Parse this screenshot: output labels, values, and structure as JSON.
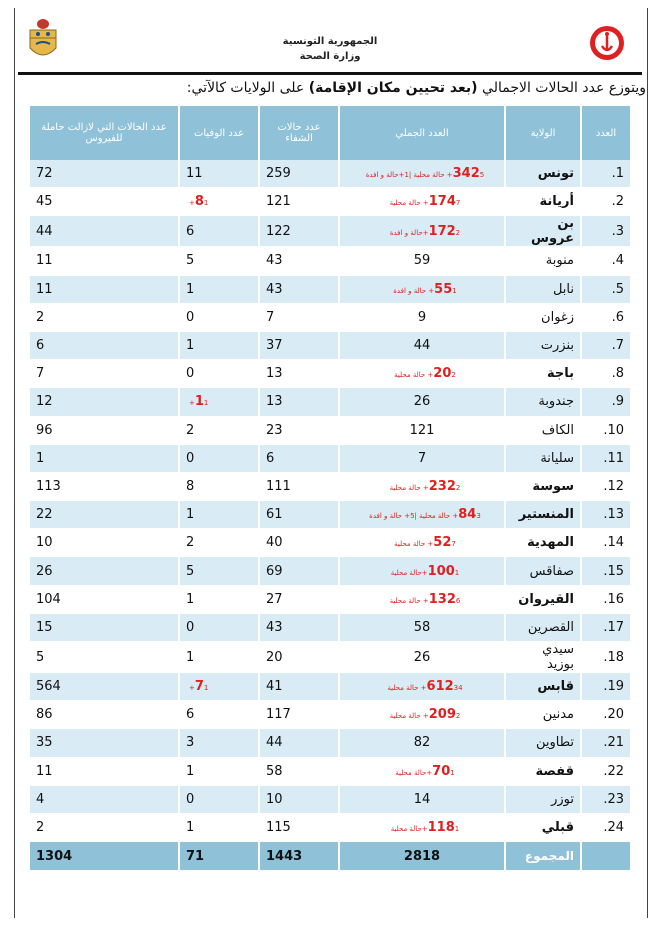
{
  "header": {
    "republic": "الجمهورية التونسية",
    "ministry": "وزارة الصحة"
  },
  "intro": {
    "prefix": "ويتوزع عدد الحالات الاجمالي ",
    "emphasis": "(بعد تحيين مكان الإقامة)",
    "suffix": " على الولايات كالآتي:"
  },
  "table": {
    "columns": [
      "العدد",
      "الولاية",
      "العدد الجملي",
      "عدد حالات الشفاء",
      "عدد الوفيات",
      "عدد الحالات التي لازالت حاملة للفيروس"
    ],
    "rows": [
      {
        "idx": "1.",
        "gov": "تونس",
        "bold": true,
        "total": "342",
        "total_red": true,
        "note": "5+ حالة محلية |1+حالة و افدة",
        "recovered": "259",
        "deaths": "11",
        "death_note": "",
        "active": "72"
      },
      {
        "idx": "2.",
        "gov": "أريانة",
        "bold": true,
        "total": "174",
        "total_red": true,
        "note": "7+ حالة محلية",
        "recovered": "121",
        "deaths": "8",
        "death_note": "1+",
        "active": "45"
      },
      {
        "idx": "3.",
        "gov": "بن عروس",
        "bold": true,
        "total": "172",
        "total_red": true,
        "note": "2+حالة و افدة",
        "recovered": "122",
        "deaths": "6",
        "death_note": "",
        "active": "44"
      },
      {
        "idx": "4.",
        "gov": "منوبة",
        "bold": false,
        "total": "59",
        "total_red": false,
        "note": "",
        "recovered": "43",
        "deaths": "5",
        "death_note": "",
        "active": "11"
      },
      {
        "idx": "5.",
        "gov": "نابل",
        "bold": false,
        "total": "55",
        "total_red": true,
        "note": "1+ حالة و افدة",
        "recovered": "43",
        "deaths": "1",
        "death_note": "",
        "active": "11"
      },
      {
        "idx": "6.",
        "gov": "زغوان",
        "bold": false,
        "total": "9",
        "total_red": false,
        "note": "",
        "recovered": "7",
        "deaths": "0",
        "death_note": "",
        "active": "2"
      },
      {
        "idx": "7.",
        "gov": "بنزرت",
        "bold": false,
        "total": "44",
        "total_red": false,
        "note": "",
        "recovered": "37",
        "deaths": "1",
        "death_note": "",
        "active": "6"
      },
      {
        "idx": "8.",
        "gov": "باجة",
        "bold": true,
        "total": "20",
        "total_red": true,
        "note": "2+ حالة محلية",
        "recovered": "13",
        "deaths": "0",
        "death_note": "",
        "active": "7"
      },
      {
        "idx": "9.",
        "gov": "جندوبة",
        "bold": false,
        "total": "26",
        "total_red": false,
        "note": "",
        "recovered": "13",
        "deaths": "1",
        "death_note": "1+",
        "active": "12"
      },
      {
        "idx": "10.",
        "gov": "الكاف",
        "bold": false,
        "total": "121",
        "total_red": false,
        "note": "",
        "recovered": "23",
        "deaths": "2",
        "death_note": "",
        "active": "96"
      },
      {
        "idx": "11.",
        "gov": "سليانة",
        "bold": false,
        "total": "7",
        "total_red": false,
        "note": "",
        "recovered": "6",
        "deaths": "0",
        "death_note": "",
        "active": "1"
      },
      {
        "idx": "12.",
        "gov": "سوسة",
        "bold": true,
        "total": "232",
        "total_red": true,
        "note": "2+ حالة محلية",
        "recovered": "111",
        "deaths": "8",
        "death_note": "",
        "active": "113"
      },
      {
        "idx": "13.",
        "gov": "المنستير",
        "bold": true,
        "total": "84",
        "total_red": true,
        "note": "3+ حالة محلية |5+ حالة و افدة",
        "recovered": "61",
        "deaths": "1",
        "death_note": "",
        "active": "22"
      },
      {
        "idx": "14.",
        "gov": "المهدية",
        "bold": true,
        "total": "52",
        "total_red": true,
        "note": "7+ حالة محلية",
        "recovered": "40",
        "deaths": "2",
        "death_note": "",
        "active": "10"
      },
      {
        "idx": "15.",
        "gov": "صفاقس",
        "bold": false,
        "total": "100",
        "total_red": true,
        "note": "1+حالة محلية",
        "recovered": "69",
        "deaths": "5",
        "death_note": "",
        "active": "26"
      },
      {
        "idx": "16.",
        "gov": "القيروان",
        "bold": true,
        "total": "132",
        "total_red": true,
        "note": "6+ حالة محلية",
        "recovered": "27",
        "deaths": "1",
        "death_note": "",
        "active": "104"
      },
      {
        "idx": "17.",
        "gov": "القصرين",
        "bold": false,
        "total": "58",
        "total_red": false,
        "note": "",
        "recovered": "43",
        "deaths": "0",
        "death_note": "",
        "active": "15"
      },
      {
        "idx": "18.",
        "gov": "سيدي بوزيد",
        "bold": false,
        "total": "26",
        "total_red": false,
        "note": "",
        "recovered": "20",
        "deaths": "1",
        "death_note": "",
        "active": "5"
      },
      {
        "idx": "19.",
        "gov": "قابس",
        "bold": true,
        "total": "612",
        "total_red": true,
        "note": "34+ حالة محلية",
        "recovered": "41",
        "deaths": "7",
        "death_note": "1+",
        "active": "564"
      },
      {
        "idx": "20.",
        "gov": "مدنين",
        "bold": false,
        "total": "209",
        "total_red": true,
        "note": "2+ حالة محلية",
        "recovered": "117",
        "deaths": "6",
        "death_note": "",
        "active": "86"
      },
      {
        "idx": "21.",
        "gov": "تطاوين",
        "bold": false,
        "total": "82",
        "total_red": false,
        "note": "",
        "recovered": "44",
        "deaths": "3",
        "death_note": "",
        "active": "35"
      },
      {
        "idx": "22.",
        "gov": "قفصة",
        "bold": true,
        "total": "70",
        "total_red": true,
        "note": "1+حالة محلية",
        "recovered": "58",
        "deaths": "1",
        "death_note": "",
        "active": "11"
      },
      {
        "idx": "23.",
        "gov": "توزر",
        "bold": false,
        "total": "14",
        "total_red": false,
        "note": "",
        "recovered": "10",
        "deaths": "0",
        "death_note": "",
        "active": "4"
      },
      {
        "idx": "24.",
        "gov": "قبلي",
        "bold": true,
        "total": "118",
        "total_red": true,
        "note": "1+حالة محلية",
        "recovered": "115",
        "deaths": "1",
        "death_note": "",
        "active": "2"
      }
    ],
    "totals": {
      "label": "المجموع",
      "total": "2818",
      "recovered": "1443",
      "deaths": "71",
      "active": "1304"
    }
  },
  "colors": {
    "header_fill": "#8fc2d8",
    "alt_row_fill": "#d9ebf5",
    "highlight_red": "#e02020"
  }
}
